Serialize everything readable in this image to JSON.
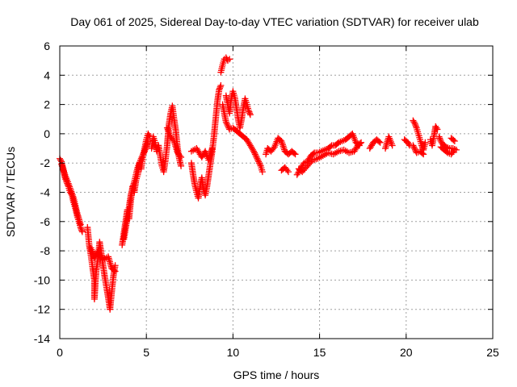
{
  "colors": {
    "series": "#ff0000",
    "grid": "#a0a0a0",
    "frame": "#000000"
  },
  "chart_data": {
    "type": "scatter",
    "title": "Day 061 of 2025, Sidereal Day-to-day VTEC variation (SDTVAR) for receiver ulab",
    "xlabel": "GPS time / hours",
    "ylabel": "SDTVAR / TECUs",
    "xlim": [
      0,
      25
    ],
    "ylim": [
      -14,
      6
    ],
    "xticks": [
      0,
      5,
      10,
      15,
      20,
      25
    ],
    "yticks": [
      -14,
      -12,
      -10,
      -8,
      -6,
      -4,
      -2,
      0,
      2,
      4,
      6
    ],
    "grid": true,
    "marker": "plus",
    "series": [
      {
        "name": "SDTVAR",
        "segments": [
          [
            [
              0.0,
              -1.7
            ],
            [
              0.1,
              -1.9
            ],
            [
              0.2,
              -2.4
            ],
            [
              0.3,
              -3.0
            ],
            [
              0.4,
              -3.3
            ],
            [
              0.5,
              -3.6
            ],
            [
              0.6,
              -4.0
            ],
            [
              0.7,
              -4.2
            ],
            [
              0.8,
              -4.7
            ],
            [
              0.9,
              -5.1
            ],
            [
              1.0,
              -5.6
            ],
            [
              1.1,
              -6.0
            ],
            [
              1.2,
              -6.4
            ],
            [
              1.3,
              -6.7
            ]
          ],
          [
            [
              0.1,
              -2.1
            ],
            [
              0.3,
              -2.8
            ],
            [
              0.5,
              -3.4
            ],
            [
              0.8,
              -4.4
            ],
            [
              1.0,
              -5.4
            ],
            [
              1.2,
              -6.2
            ]
          ],
          [
            [
              1.6,
              -6.4
            ],
            [
              1.7,
              -7.6
            ],
            [
              1.8,
              -8.3
            ],
            [
              1.9,
              -9.2
            ],
            [
              2.0,
              -10.0
            ],
            [
              2.0,
              -11.3
            ],
            [
              2.1,
              -9.4
            ],
            [
              2.2,
              -8.6
            ],
            [
              2.3,
              -7.4
            ],
            [
              2.4,
              -8.2
            ],
            [
              2.5,
              -9.0
            ],
            [
              2.6,
              -9.8
            ],
            [
              2.7,
              -10.5
            ],
            [
              2.8,
              -11.2
            ],
            [
              2.9,
              -12.0
            ],
            [
              3.0,
              -10.8
            ],
            [
              3.1,
              -9.7
            ],
            [
              3.2,
              -9.0
            ]
          ],
          [
            [
              1.8,
              -7.8
            ],
            [
              2.0,
              -8.5
            ],
            [
              2.2,
              -8.0
            ],
            [
              2.5,
              -8.6
            ],
            [
              2.8,
              -8.4
            ],
            [
              3.0,
              -9.2
            ],
            [
              3.2,
              -9.4
            ]
          ],
          [
            [
              3.6,
              -7.6
            ],
            [
              3.7,
              -6.8
            ],
            [
              3.8,
              -6.0
            ],
            [
              3.9,
              -5.2
            ],
            [
              4.0,
              -5.8
            ],
            [
              4.1,
              -4.6
            ],
            [
              4.2,
              -3.6
            ],
            [
              4.3,
              -4.0
            ],
            [
              4.4,
              -3.2
            ],
            [
              4.5,
              -2.8
            ],
            [
              4.6,
              -2.0
            ],
            [
              4.7,
              -2.4
            ],
            [
              4.8,
              -1.5
            ],
            [
              4.9,
              -1.0
            ],
            [
              5.0,
              -0.4
            ],
            [
              5.1,
              0.0
            ],
            [
              5.2,
              -0.2
            ]
          ],
          [
            [
              3.7,
              -7.2
            ],
            [
              3.9,
              -5.8
            ],
            [
              4.1,
              -4.2
            ],
            [
              4.3,
              -3.3
            ],
            [
              4.5,
              -2.3
            ],
            [
              4.7,
              -1.7
            ],
            [
              4.9,
              -1.2
            ],
            [
              5.1,
              -0.5
            ]
          ],
          [
            [
              5.3,
              -1.0
            ],
            [
              5.4,
              -0.2
            ],
            [
              5.5,
              -0.6
            ],
            [
              5.6,
              -1.2
            ],
            [
              5.7,
              -0.8
            ],
            [
              5.8,
              -1.5
            ],
            [
              5.9,
              -2.2
            ],
            [
              6.0,
              -2.6
            ],
            [
              6.1,
              -1.8
            ],
            [
              6.2,
              -0.8
            ],
            [
              6.3,
              0.6
            ],
            [
              6.4,
              1.4
            ],
            [
              6.5,
              1.9
            ],
            [
              6.6,
              1.0
            ],
            [
              6.7,
              0.2
            ],
            [
              6.8,
              -1.0
            ],
            [
              6.9,
              -1.7
            ],
            [
              7.0,
              -2.2
            ]
          ],
          [
            [
              6.2,
              0.4
            ],
            [
              6.4,
              -0.2
            ],
            [
              6.6,
              -0.5
            ],
            [
              6.8,
              -1.3
            ],
            [
              7.0,
              -1.6
            ]
          ],
          [
            [
              7.6,
              -2.0
            ],
            [
              7.7,
              -2.8
            ],
            [
              7.8,
              -3.5
            ],
            [
              7.9,
              -4.0
            ],
            [
              8.0,
              -4.4
            ],
            [
              8.1,
              -3.6
            ],
            [
              8.2,
              -3.0
            ],
            [
              8.3,
              -3.8
            ],
            [
              8.4,
              -4.2
            ],
            [
              8.5,
              -3.6
            ],
            [
              8.6,
              -2.8
            ],
            [
              8.7,
              -2.0
            ],
            [
              8.8,
              -1.2
            ],
            [
              8.9,
              -0.2
            ],
            [
              9.0,
              1.0
            ],
            [
              9.1,
              2.2
            ],
            [
              9.2,
              3.0
            ],
            [
              9.3,
              3.3
            ]
          ],
          [
            [
              7.6,
              -1.2
            ],
            [
              7.9,
              -1.0
            ],
            [
              8.2,
              -1.6
            ],
            [
              8.4,
              -1.2
            ],
            [
              8.6,
              -1.8
            ],
            [
              8.8,
              -1.0
            ]
          ],
          [
            [
              9.3,
              4.2
            ],
            [
              9.4,
              4.7
            ],
            [
              9.5,
              5.1
            ],
            [
              9.6,
              5.2
            ],
            [
              9.7,
              5.0
            ],
            [
              9.8,
              5.1
            ]
          ],
          [
            [
              9.6,
              2.6
            ],
            [
              9.7,
              2.0
            ],
            [
              9.8,
              1.4
            ],
            [
              9.9,
              2.4
            ],
            [
              10.0,
              2.9
            ],
            [
              10.1,
              2.5
            ],
            [
              10.2,
              1.8
            ],
            [
              10.3,
              1.0
            ],
            [
              10.4,
              0.4
            ],
            [
              10.5,
              1.0
            ],
            [
              10.6,
              1.8
            ],
            [
              10.7,
              2.4
            ],
            [
              10.8,
              2.0
            ],
            [
              10.9,
              1.6
            ],
            [
              11.0,
              1.3
            ]
          ],
          [
            [
              9.4,
              2.0
            ],
            [
              9.6,
              0.8
            ],
            [
              9.8,
              0.3
            ],
            [
              10.0,
              0.4
            ],
            [
              10.2,
              0.2
            ],
            [
              10.4,
              0.0
            ],
            [
              10.6,
              -0.2
            ],
            [
              10.8,
              -0.4
            ],
            [
              11.0,
              -0.8
            ],
            [
              11.2,
              -1.2
            ],
            [
              11.4,
              -1.7
            ],
            [
              11.6,
              -2.2
            ],
            [
              11.7,
              -2.6
            ]
          ],
          [
            [
              11.9,
              -1.4
            ],
            [
              12.0,
              -1.0
            ],
            [
              12.2,
              -1.2
            ],
            [
              12.4,
              -0.9
            ],
            [
              12.6,
              -0.3
            ],
            [
              12.8,
              -0.5
            ],
            [
              13.0,
              -1.2
            ],
            [
              13.2,
              -1.4
            ],
            [
              13.4,
              -1.2
            ],
            [
              13.6,
              -1.4
            ]
          ],
          [
            [
              12.8,
              -2.5
            ],
            [
              13.0,
              -2.3
            ],
            [
              13.2,
              -2.6
            ]
          ],
          [
            [
              13.7,
              -2.8
            ],
            [
              13.9,
              -2.4
            ],
            [
              14.1,
              -2.0
            ],
            [
              14.3,
              -1.9
            ],
            [
              14.5,
              -1.5
            ],
            [
              14.7,
              -1.3
            ],
            [
              14.9,
              -1.3
            ],
            [
              15.1,
              -1.2
            ],
            [
              15.3,
              -1.1
            ],
            [
              15.5,
              -1.0
            ],
            [
              15.7,
              -0.8
            ],
            [
              15.9,
              -0.8
            ],
            [
              16.1,
              -0.6
            ],
            [
              16.3,
              -0.5
            ],
            [
              16.5,
              -0.4
            ],
            [
              16.7,
              -0.2
            ],
            [
              16.9,
              0.0
            ],
            [
              17.1,
              -0.6
            ],
            [
              17.3,
              -0.8
            ]
          ],
          [
            [
              13.8,
              -2.4
            ],
            [
              14.0,
              -2.6
            ],
            [
              14.3,
              -2.2
            ],
            [
              14.6,
              -1.8
            ],
            [
              14.9,
              -1.7
            ],
            [
              15.2,
              -1.5
            ],
            [
              15.5,
              -1.3
            ],
            [
              15.8,
              -1.4
            ],
            [
              16.1,
              -1.2
            ],
            [
              16.4,
              -1.1
            ],
            [
              16.7,
              -1.3
            ],
            [
              17.0,
              -1.2
            ]
          ],
          [
            [
              17.0,
              -1.2
            ],
            [
              17.2,
              -0.8
            ],
            [
              17.4,
              -0.6
            ]
          ],
          [
            [
              17.9,
              -1.0
            ],
            [
              18.1,
              -0.6
            ],
            [
              18.3,
              -0.4
            ],
            [
              18.5,
              -0.6
            ]
          ],
          [
            [
              18.8,
              -1.0
            ],
            [
              19.0,
              -0.2
            ],
            [
              19.2,
              -0.8
            ]
          ],
          [
            [
              19.9,
              -0.4
            ],
            [
              20.1,
              -0.6
            ],
            [
              20.2,
              -0.8
            ]
          ],
          [
            [
              20.4,
              0.9
            ],
            [
              20.5,
              0.7
            ],
            [
              20.6,
              0.4
            ],
            [
              20.7,
              0.0
            ],
            [
              20.8,
              -0.4
            ],
            [
              20.9,
              -0.8
            ],
            [
              21.0,
              -1.1
            ],
            [
              21.1,
              -0.6
            ]
          ],
          [
            [
              20.4,
              -0.8
            ],
            [
              20.6,
              -1.3
            ],
            [
              20.8,
              -1.2
            ],
            [
              21.0,
              -1.4
            ]
          ],
          [
            [
              21.4,
              -0.4
            ],
            [
              21.5,
              -0.8
            ],
            [
              21.6,
              -0.2
            ],
            [
              21.7,
              0.5
            ],
            [
              21.8,
              0.3
            ]
          ],
          [
            [
              21.9,
              -0.2
            ],
            [
              22.0,
              -0.5
            ],
            [
              22.1,
              -0.7
            ],
            [
              22.3,
              -0.9
            ],
            [
              22.5,
              -1.0
            ],
            [
              22.7,
              -1.0
            ],
            [
              22.9,
              -1.1
            ]
          ],
          [
            [
              22.0,
              -0.9
            ],
            [
              22.2,
              -1.1
            ],
            [
              22.4,
              -1.3
            ],
            [
              22.6,
              -1.4
            ],
            [
              22.8,
              -1.1
            ]
          ],
          [
            [
              22.6,
              -0.3
            ],
            [
              22.8,
              -0.5
            ]
          ]
        ]
      }
    ]
  }
}
